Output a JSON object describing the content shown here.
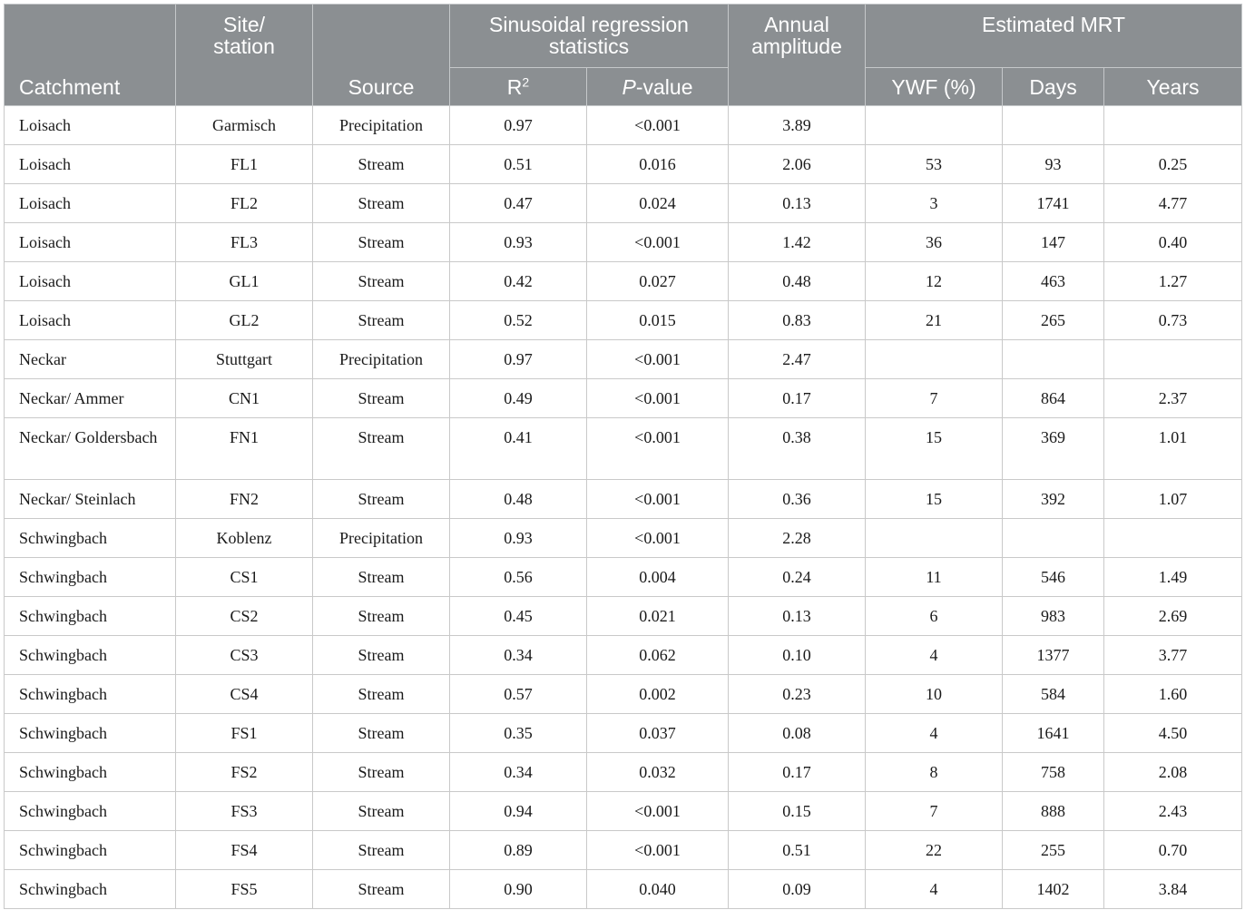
{
  "header": {
    "catchment": "Catchment",
    "site_line1": "Site/",
    "site_line2": "station",
    "source": "Source",
    "sinusoidal": "Sinusoidal regression statistics",
    "r2_base": "R",
    "r2_sup": "2",
    "pvalue_italic": "P",
    "pvalue_rest": "-value",
    "annual_line1": "Annual",
    "annual_line2": "amplitude",
    "mrt": "Estimated MRT",
    "ywf": "YWF (%)",
    "days": "Days",
    "years": "Years"
  },
  "rows": [
    [
      "Loisach",
      "Garmisch",
      "Precipitation",
      "0.97",
      "<0.001",
      "3.89",
      "",
      "",
      ""
    ],
    [
      "Loisach",
      "FL1",
      "Stream",
      "0.51",
      "0.016",
      "2.06",
      "53",
      "93",
      "0.25"
    ],
    [
      "Loisach",
      "FL2",
      "Stream",
      "0.47",
      "0.024",
      "0.13",
      "3",
      "1741",
      "4.77"
    ],
    [
      "Loisach",
      "FL3",
      "Stream",
      "0.93",
      "<0.001",
      "1.42",
      "36",
      "147",
      "0.40"
    ],
    [
      "Loisach",
      "GL1",
      "Stream",
      "0.42",
      "0.027",
      "0.48",
      "12",
      "463",
      "1.27"
    ],
    [
      "Loisach",
      "GL2",
      "Stream",
      "0.52",
      "0.015",
      "0.83",
      "21",
      "265",
      "0.73"
    ],
    [
      "Neckar",
      "Stuttgart",
      "Precipitation",
      "0.97",
      "<0.001",
      "2.47",
      "",
      "",
      ""
    ],
    [
      "Neckar/ Ammer",
      "CN1",
      "Stream",
      "0.49",
      "<0.001",
      "0.17",
      "7",
      "864",
      "2.37"
    ],
    [
      "Neckar/ Goldersbach",
      "FN1",
      "Stream",
      "0.41",
      "<0.001",
      "0.38",
      "15",
      "369",
      "1.01"
    ],
    [
      "Neckar/ Steinlach",
      "FN2",
      "Stream",
      "0.48",
      "<0.001",
      "0.36",
      "15",
      "392",
      "1.07"
    ],
    [
      "Schwingbach",
      "Koblenz",
      "Precipitation",
      "0.93",
      "<0.001",
      "2.28",
      "",
      "",
      ""
    ],
    [
      "Schwingbach",
      "CS1",
      "Stream",
      "0.56",
      "0.004",
      "0.24",
      "11",
      "546",
      "1.49"
    ],
    [
      "Schwingbach",
      "CS2",
      "Stream",
      "0.45",
      "0.021",
      "0.13",
      "6",
      "983",
      "2.69"
    ],
    [
      "Schwingbach",
      "CS3",
      "Stream",
      "0.34",
      "0.062",
      "0.10",
      "4",
      "1377",
      "3.77"
    ],
    [
      "Schwingbach",
      "CS4",
      "Stream",
      "0.57",
      "0.002",
      "0.23",
      "10",
      "584",
      "1.60"
    ],
    [
      "Schwingbach",
      "FS1",
      "Stream",
      "0.35",
      "0.037",
      "0.08",
      "4",
      "1641",
      "4.50"
    ],
    [
      "Schwingbach",
      "FS2",
      "Stream",
      "0.34",
      "0.032",
      "0.17",
      "8",
      "758",
      "2.08"
    ],
    [
      "Schwingbach",
      "FS3",
      "Stream",
      "0.94",
      "<0.001",
      "0.15",
      "7",
      "888",
      "2.43"
    ],
    [
      "Schwingbach",
      "FS4",
      "Stream",
      "0.89",
      "<0.001",
      "0.51",
      "22",
      "255",
      "0.70"
    ],
    [
      "Schwingbach",
      "FS5",
      "Stream",
      "0.90",
      "0.040",
      "0.09",
      "4",
      "1402",
      "3.84"
    ]
  ]
}
